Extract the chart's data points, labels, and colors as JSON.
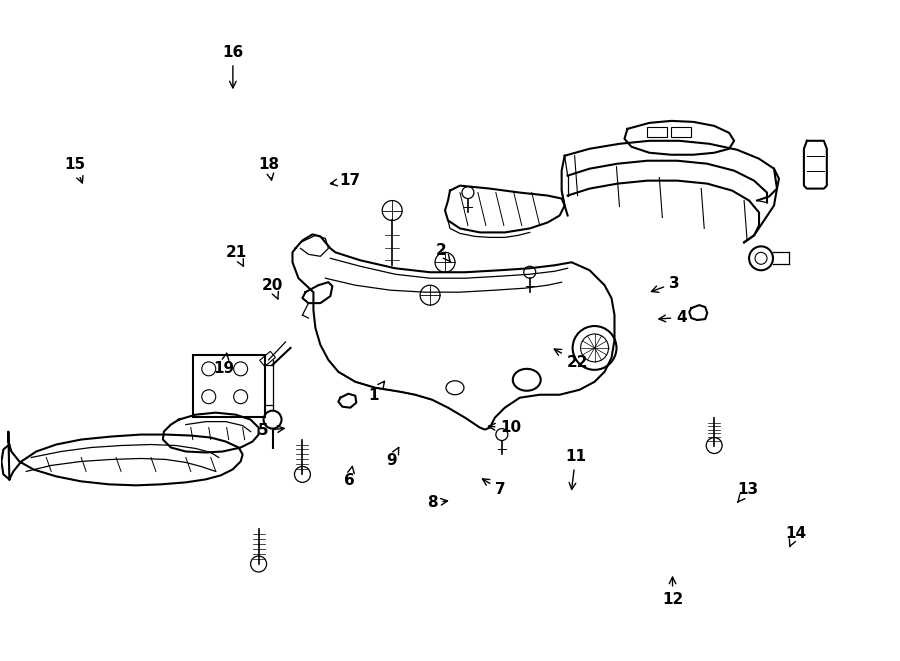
{
  "background_color": "#ffffff",
  "line_color": "#000000",
  "figsize": [
    9.0,
    6.61
  ],
  "dpi": 100,
  "label_data": [
    [
      1,
      0.415,
      0.598,
      0.43,
      0.572
    ],
    [
      2,
      0.49,
      0.378,
      0.503,
      0.4
    ],
    [
      3,
      0.75,
      0.428,
      0.72,
      0.443
    ],
    [
      4,
      0.758,
      0.48,
      0.728,
      0.483
    ],
    [
      5,
      0.292,
      0.652,
      0.32,
      0.648
    ],
    [
      6,
      0.388,
      0.728,
      0.392,
      0.7
    ],
    [
      7,
      0.556,
      0.742,
      0.532,
      0.722
    ],
    [
      8,
      0.48,
      0.762,
      0.502,
      0.758
    ],
    [
      9,
      0.435,
      0.698,
      0.445,
      0.672
    ],
    [
      10,
      0.568,
      0.648,
      0.538,
      0.645
    ],
    [
      11,
      0.64,
      0.692,
      0.635,
      0.748
    ],
    [
      12,
      0.748,
      0.908,
      0.748,
      0.868
    ],
    [
      13,
      0.832,
      0.742,
      0.82,
      0.762
    ],
    [
      14,
      0.885,
      0.808,
      0.878,
      0.83
    ],
    [
      15,
      0.082,
      0.248,
      0.092,
      0.282
    ],
    [
      16,
      0.258,
      0.078,
      0.258,
      0.138
    ],
    [
      17,
      0.388,
      0.272,
      0.362,
      0.278
    ],
    [
      18,
      0.298,
      0.248,
      0.302,
      0.278
    ],
    [
      19,
      0.248,
      0.558,
      0.252,
      0.528
    ],
    [
      20,
      0.302,
      0.432,
      0.31,
      0.458
    ],
    [
      21,
      0.262,
      0.382,
      0.272,
      0.408
    ],
    [
      22,
      0.642,
      0.548,
      0.612,
      0.525
    ]
  ]
}
